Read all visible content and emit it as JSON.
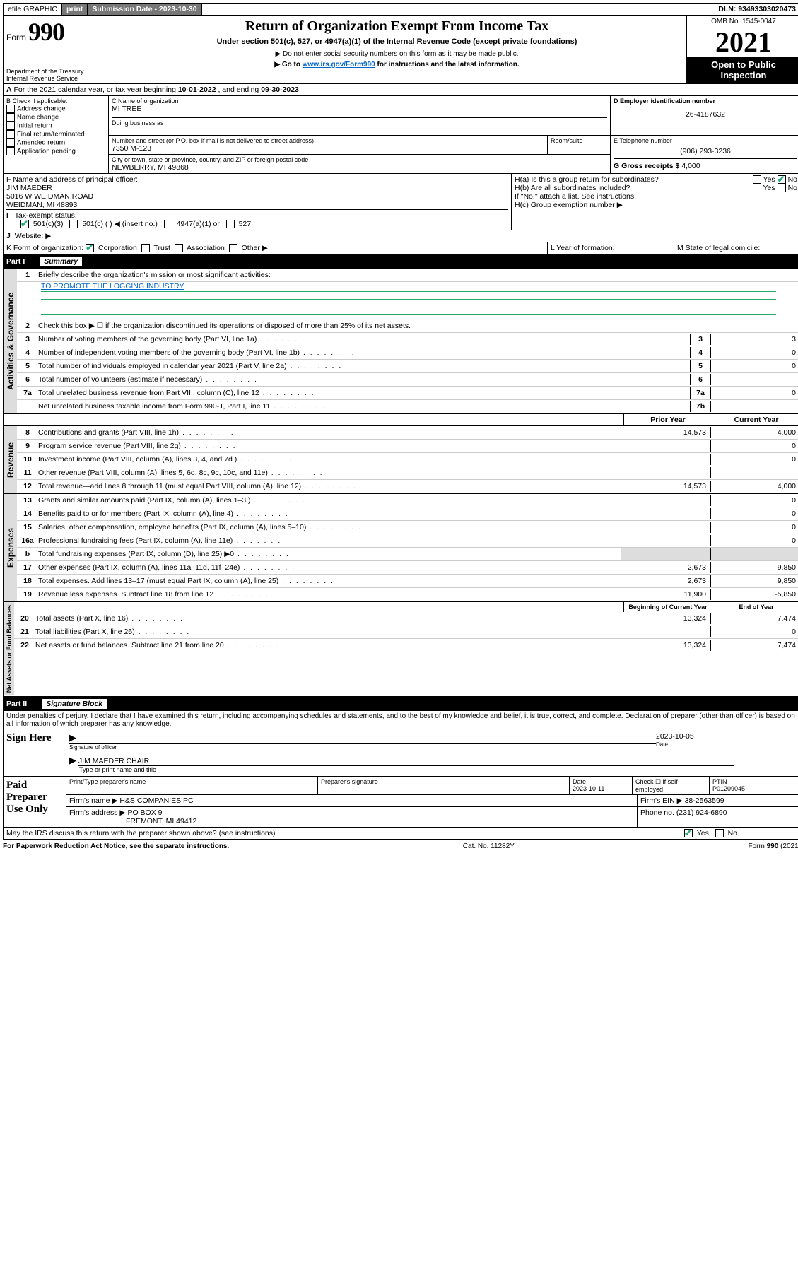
{
  "topbar": {
    "efile": "efile GRAPHIC",
    "print": "print",
    "sub_lbl": "Submission Date - 2023-10-30",
    "dln": "DLN: 93493303020473"
  },
  "header": {
    "form_word": "Form",
    "form_num": "990",
    "dept": "Department of the Treasury",
    "irs": "Internal Revenue Service",
    "title": "Return of Organization Exempt From Income Tax",
    "subtitle": "Under section 501(c), 527, or 4947(a)(1) of the Internal Revenue Code (except private foundations)",
    "note1": "▶ Do not enter social security numbers on this form as it may be made public.",
    "note2_pre": "▶ Go to ",
    "note2_link": "www.irs.gov/Form990",
    "note2_post": " for instructions and the latest information.",
    "omb": "OMB No. 1545-0047",
    "year": "2021",
    "open": "Open to Public Inspection"
  },
  "period": {
    "pre": "For the 2021 calendar year, or tax year beginning ",
    "begin": "10-01-2022",
    "mid": " , and ending ",
    "end": "09-30-2023"
  },
  "boxB": {
    "label": "B Check if applicable:",
    "items": [
      "Address change",
      "Name change",
      "Initial return",
      "Final return/terminated",
      "Amended return",
      "Application pending"
    ]
  },
  "boxC": {
    "lbl": "C Name of organization",
    "name": "MI TREE",
    "dba_lbl": "Doing business as",
    "street_lbl": "Number and street (or P.O. box if mail is not delivered to street address)",
    "room_lbl": "Room/suite",
    "street": "7350 M-123",
    "city_lbl": "City or town, state or province, country, and ZIP or foreign postal code",
    "city": "NEWBERRY, MI  49868"
  },
  "boxD": {
    "lbl": "D Employer identification number",
    "val": "26-4187632"
  },
  "boxE": {
    "lbl": "E Telephone number",
    "val": "(906) 293-3236"
  },
  "boxG": {
    "lbl": "G Gross receipts $",
    "val": "4,000"
  },
  "boxF": {
    "lbl": "F Name and address of principal officer:",
    "name": "JIM MAEDER",
    "addr1": "5016 W WEIDMAN ROAD",
    "addr2": "WEIDMAN, MI  48893"
  },
  "boxH": {
    "a": "H(a)  Is this a group return for subordinates?",
    "b": "H(b)  Are all subordinates included?",
    "b2": "If \"No,\" attach a list. See instructions.",
    "c": "H(c)  Group exemption number ▶"
  },
  "boxI": {
    "lbl": "Tax-exempt status:",
    "opts": [
      "501(c)(3)",
      "501(c) (  ) ◀ (insert no.)",
      "4947(a)(1) or",
      "527"
    ]
  },
  "boxJ": "Website: ▶",
  "boxK": {
    "lbl": "K Form of organization:",
    "opts": [
      "Corporation",
      "Trust",
      "Association",
      "Other ▶"
    ]
  },
  "boxL": "L Year of formation:",
  "boxM": "M State of legal domicile:",
  "parts": {
    "p1": {
      "num": "Part I",
      "title": "Summary"
    },
    "p2": {
      "num": "Part II",
      "title": "Signature Block"
    }
  },
  "summary": {
    "q1": "Briefly describe the organization's mission or most significant activities:",
    "q1a": "TO PROMOTE THE LOGGING INDUSTRY",
    "q2": "Check this box ▶ ☐  if the organization discontinued its operations or disposed of more than 25% of its net assets.",
    "lines": [
      {
        "n": "3",
        "d": "Number of voting members of the governing body (Part VI, line 1a)",
        "box": "3",
        "v": "3"
      },
      {
        "n": "4",
        "d": "Number of independent voting members of the governing body (Part VI, line 1b)",
        "box": "4",
        "v": "0"
      },
      {
        "n": "5",
        "d": "Total number of individuals employed in calendar year 2021 (Part V, line 2a)",
        "box": "5",
        "v": "0"
      },
      {
        "n": "6",
        "d": "Total number of volunteers (estimate if necessary)",
        "box": "6",
        "v": ""
      },
      {
        "n": "7a",
        "d": "Total unrelated business revenue from Part VIII, column (C), line 12",
        "box": "7a",
        "v": "0"
      },
      {
        "n": "",
        "d": "Net unrelated business taxable income from Form 990-T, Part I, line 11",
        "box": "7b",
        "v": ""
      }
    ],
    "cols": {
      "prior": "Prior Year",
      "current": "Current Year",
      "begin": "Beginning of Current Year",
      "end": "End of Year"
    },
    "rev": [
      {
        "n": "8",
        "d": "Contributions and grants (Part VIII, line 1h)",
        "p": "14,573",
        "c": "4,000"
      },
      {
        "n": "9",
        "d": "Program service revenue (Part VIII, line 2g)",
        "p": "",
        "c": "0"
      },
      {
        "n": "10",
        "d": "Investment income (Part VIII, column (A), lines 3, 4, and 7d )",
        "p": "",
        "c": "0"
      },
      {
        "n": "11",
        "d": "Other revenue (Part VIII, column (A), lines 5, 6d, 8c, 9c, 10c, and 11e)",
        "p": "",
        "c": ""
      },
      {
        "n": "12",
        "d": "Total revenue—add lines 8 through 11 (must equal Part VIII, column (A), line 12)",
        "p": "14,573",
        "c": "4,000"
      }
    ],
    "exp": [
      {
        "n": "13",
        "d": "Grants and similar amounts paid (Part IX, column (A), lines 1–3 )",
        "p": "",
        "c": "0"
      },
      {
        "n": "14",
        "d": "Benefits paid to or for members (Part IX, column (A), line 4)",
        "p": "",
        "c": "0"
      },
      {
        "n": "15",
        "d": "Salaries, other compensation, employee benefits (Part IX, column (A), lines 5–10)",
        "p": "",
        "c": "0"
      },
      {
        "n": "16a",
        "d": "Professional fundraising fees (Part IX, column (A), line 11e)",
        "p": "",
        "c": "0"
      },
      {
        "n": "b",
        "d": "Total fundraising expenses (Part IX, column (D), line 25) ▶0",
        "p": "shade",
        "c": "shade"
      },
      {
        "n": "17",
        "d": "Other expenses (Part IX, column (A), lines 11a–11d, 11f–24e)",
        "p": "2,673",
        "c": "9,850"
      },
      {
        "n": "18",
        "d": "Total expenses. Add lines 13–17 (must equal Part IX, column (A), line 25)",
        "p": "2,673",
        "c": "9,850"
      },
      {
        "n": "19",
        "d": "Revenue less expenses. Subtract line 18 from line 12",
        "p": "11,900",
        "c": "-5,850"
      }
    ],
    "net": [
      {
        "n": "20",
        "d": "Total assets (Part X, line 16)",
        "p": "13,324",
        "c": "7,474"
      },
      {
        "n": "21",
        "d": "Total liabilities (Part X, line 26)",
        "p": "",
        "c": "0"
      },
      {
        "n": "22",
        "d": "Net assets or fund balances. Subtract line 21 from line 20",
        "p": "13,324",
        "c": "7,474"
      }
    ],
    "tabs": {
      "gov": "Activities & Governance",
      "rev": "Revenue",
      "exp": "Expenses",
      "net": "Net Assets or Fund Balances"
    }
  },
  "sig": {
    "decl": "Under penalties of perjury, I declare that I have examined this return, including accompanying schedules and statements, and to the best of my knowledge and belief, it is true, correct, and complete. Declaration of preparer (other than officer) is based on all information of which preparer has any knowledge.",
    "sign_here": "Sign Here",
    "sig_off": "Signature of officer",
    "date_lbl": "Date",
    "date": "2023-10-05",
    "name": "JIM MAEDER CHAIR",
    "name_lbl": "Type or print name and title",
    "paid": "Paid Preparer Use Only",
    "prep_name_lbl": "Print/Type preparer's name",
    "prep_sig_lbl": "Preparer's signature",
    "prep_date_lbl": "Date",
    "prep_date": "2023-10-11",
    "check_lbl": "Check ☐ if self-employed",
    "ptin_lbl": "PTIN",
    "ptin": "P01209045",
    "firm_name_lbl": "Firm's name    ▶",
    "firm_name": "H&S COMPANIES PC",
    "firm_ein_lbl": "Firm's EIN ▶",
    "firm_ein": "38-2563599",
    "firm_addr_lbl": "Firm's address ▶",
    "firm_addr1": "PO BOX 9",
    "firm_addr2": "FREMONT, MI  49412",
    "phone_lbl": "Phone no.",
    "phone": "(231) 924-6890",
    "may": "May the IRS discuss this return with the preparer shown above? (see instructions)"
  },
  "footer": {
    "left": "For Paperwork Reduction Act Notice, see the separate instructions.",
    "mid": "Cat. No. 11282Y",
    "right": "Form 990 (2021)"
  },
  "yesno": {
    "yes": "Yes",
    "no": "No"
  }
}
